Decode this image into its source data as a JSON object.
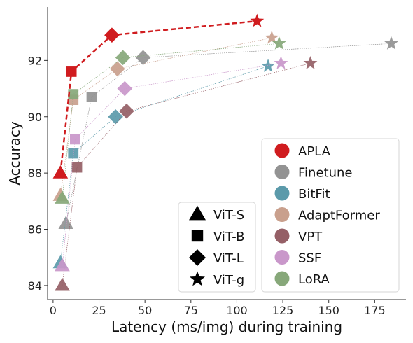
{
  "chart_data": {
    "type": "scatter",
    "xlabel": "Latency (ms/img) during training",
    "ylabel": "Accuracy",
    "xlim": [
      -3,
      192
    ],
    "ylim": [
      83.5,
      93.9
    ],
    "xticks": [
      0,
      25,
      50,
      75,
      100,
      125,
      150,
      175
    ],
    "yticks": [
      84,
      86,
      88,
      90,
      92
    ],
    "legend_methods_placement": "lower-right",
    "legend_models_placement": "bottom-center",
    "models": [
      {
        "name": "ViT-S",
        "marker": "triangle"
      },
      {
        "name": "ViT-B",
        "marker": "square"
      },
      {
        "name": "ViT-L",
        "marker": "diamond"
      },
      {
        "name": "ViT-g",
        "marker": "star"
      }
    ],
    "series": [
      {
        "name": "APLA",
        "color": "#d01c1f",
        "line": "dashed-bold",
        "points": [
          {
            "x": 4,
            "y": 88.0
          },
          {
            "x": 10,
            "y": 91.6
          },
          {
            "x": 32,
            "y": 92.9
          },
          {
            "x": 111,
            "y": 93.4
          }
        ]
      },
      {
        "name": "Finetune",
        "color": "#939393",
        "line": "dotted",
        "points": [
          {
            "x": 7,
            "y": 86.2
          },
          {
            "x": 21,
            "y": 90.7
          },
          {
            "x": 49,
            "y": 92.1
          },
          {
            "x": 184,
            "y": 92.6
          }
        ]
      },
      {
        "name": "BitFit",
        "color": "#5b9aaa",
        "line": "dotted",
        "points": [
          {
            "x": 4,
            "y": 84.8
          },
          {
            "x": 11,
            "y": 88.7
          },
          {
            "x": 34,
            "y": 90.0
          },
          {
            "x": 117,
            "y": 91.8
          }
        ]
      },
      {
        "name": "AdaptFormer",
        "color": "#c9a08d",
        "line": "dotted",
        "points": [
          {
            "x": 4,
            "y": 87.2
          },
          {
            "x": 11,
            "y": 90.6
          },
          {
            "x": 35,
            "y": 91.7
          },
          {
            "x": 119,
            "y": 92.8
          }
        ]
      },
      {
        "name": "VPT",
        "color": "#955f66",
        "line": "dotted",
        "points": [
          {
            "x": 5,
            "y": 84.0
          },
          {
            "x": 13,
            "y": 88.2
          },
          {
            "x": 40,
            "y": 90.2
          },
          {
            "x": 140,
            "y": 91.9
          }
        ]
      },
      {
        "name": "SSF",
        "color": "#c997ca",
        "line": "dotted",
        "points": [
          {
            "x": 5,
            "y": 84.7
          },
          {
            "x": 12,
            "y": 89.2
          },
          {
            "x": 39,
            "y": 91.0
          },
          {
            "x": 124,
            "y": 91.9
          }
        ]
      },
      {
        "name": "LoRA",
        "color": "#87a87a",
        "line": "dotted",
        "points": [
          {
            "x": 5,
            "y": 87.1
          },
          {
            "x": 11,
            "y": 90.8
          },
          {
            "x": 38,
            "y": 92.1
          },
          {
            "x": 123,
            "y": 92.6
          }
        ]
      }
    ]
  }
}
